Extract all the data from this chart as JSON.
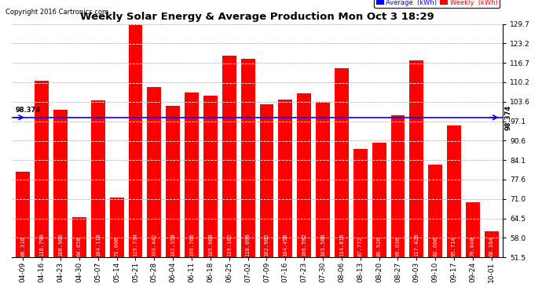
{
  "title": "Weekly Solar Energy & Average Production Mon Oct 3 18:29",
  "copyright": "Copyright 2016 Cartronics.com",
  "categories": [
    "04-09",
    "04-16",
    "04-23",
    "04-30",
    "05-07",
    "05-14",
    "05-21",
    "05-28",
    "06-04",
    "06-11",
    "06-18",
    "06-25",
    "07-02",
    "07-09",
    "07-16",
    "07-23",
    "07-30",
    "08-06",
    "08-13",
    "08-20",
    "08-27",
    "09-03",
    "09-10",
    "09-17",
    "09-24",
    "10-01"
  ],
  "values": [
    80.31,
    110.79,
    100.906,
    64.858,
    104.118,
    71.606,
    129.734,
    108.442,
    102.358,
    106.766,
    105.668,
    119.102,
    118.098,
    102.902,
    104.456,
    106.592,
    103.506,
    114.816,
    87.772,
    89.926,
    99.036,
    117.426,
    82.606,
    95.714,
    70.04,
    60.164
  ],
  "average": 98.374,
  "ymin": 51.5,
  "ymax": 129.7,
  "yticks": [
    51.5,
    58.0,
    64.5,
    71.0,
    77.6,
    84.1,
    90.6,
    97.1,
    103.6,
    110.2,
    116.7,
    123.2,
    129.7
  ],
  "bar_color": "#FF0000",
  "avg_line_color": "#0000FF",
  "background_color": "#FFFFFF",
  "plot_bg_color": "#FFFFFF",
  "grid_color": "#AAAAAA",
  "label_color_avg": "#0000FF",
  "label_color_weekly": "#FF0000",
  "legend_avg_bg": "#0000FF",
  "legend_weekly_bg": "#FF0000",
  "value_fontsize": 5.0,
  "tick_fontsize": 6.5,
  "title_fontsize": 9.5
}
